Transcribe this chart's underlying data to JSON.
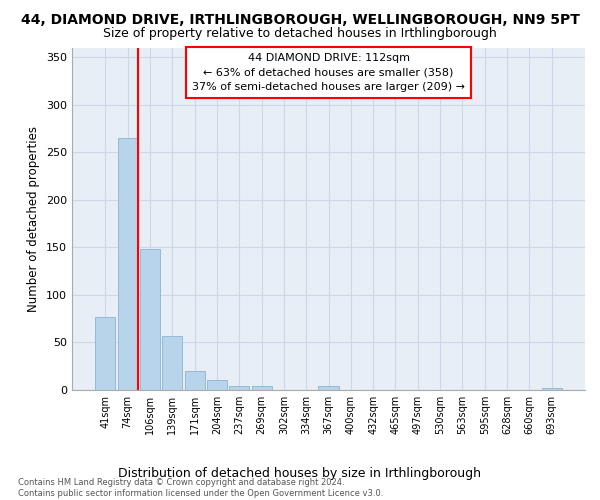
{
  "title": "44, DIAMOND DRIVE, IRTHLINGBOROUGH, WELLINGBOROUGH, NN9 5PT",
  "subtitle": "Size of property relative to detached houses in Irthlingborough",
  "xlabel": "Distribution of detached houses by size in Irthlingborough",
  "ylabel": "Number of detached properties",
  "bin_labels": [
    "41sqm",
    "74sqm",
    "106sqm",
    "139sqm",
    "171sqm",
    "204sqm",
    "237sqm",
    "269sqm",
    "302sqm",
    "334sqm",
    "367sqm",
    "400sqm",
    "432sqm",
    "465sqm",
    "497sqm",
    "530sqm",
    "563sqm",
    "595sqm",
    "628sqm",
    "660sqm",
    "693sqm"
  ],
  "bar_heights": [
    77,
    265,
    148,
    57,
    20,
    11,
    4,
    4,
    0,
    0,
    4,
    0,
    0,
    0,
    0,
    0,
    0,
    0,
    0,
    0,
    2
  ],
  "bar_color": "#b8d4ea",
  "bar_edge_color": "#8ab4d4",
  "grid_color": "#ccd8e8",
  "background_color": "#e8eef6",
  "red_line_bin_index": 1,
  "annotation_line1": "44 DIAMOND DRIVE: 112sqm",
  "annotation_line2": "← 63% of detached houses are smaller (358)",
  "annotation_line3": "37% of semi-detached houses are larger (209) →",
  "footer_text": "Contains HM Land Registry data © Crown copyright and database right 2024.\nContains public sector information licensed under the Open Government Licence v3.0.",
  "ylim": [
    0,
    360
  ],
  "yticks": [
    0,
    50,
    100,
    150,
    200,
    250,
    300,
    350
  ],
  "title_fontsize": 10,
  "subtitle_fontsize": 9,
  "ylabel_fontsize": 8.5,
  "xlabel_fontsize": 9
}
